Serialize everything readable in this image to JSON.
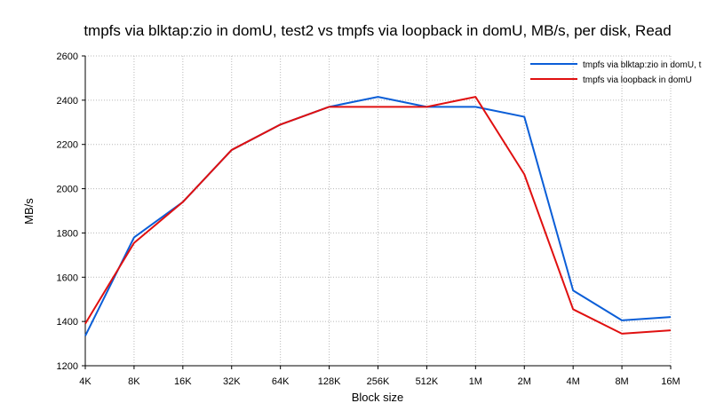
{
  "chart_data": {
    "type": "line",
    "title": "tmpfs via blktap:zio in domU, test2 vs tmpfs via loopback in domU, MB/s, per disk, Read",
    "xlabel": "Block size",
    "ylabel": "MB/s",
    "categories": [
      "4K",
      "8K",
      "16K",
      "32K",
      "64K",
      "128K",
      "256K",
      "512K",
      "1M",
      "2M",
      "4M",
      "8M",
      "16M"
    ],
    "ylim": [
      1200,
      2600
    ],
    "yticks": [
      1200,
      1400,
      1600,
      1800,
      2000,
      2200,
      2400,
      2600
    ],
    "grid": true,
    "legend_position": "top-right",
    "series": [
      {
        "name": "tmpfs via blktap:zio in domU, t",
        "color": "#0b5ed7",
        "values": [
          1335,
          1780,
          1940,
          2175,
          2290,
          2370,
          2415,
          2370,
          2370,
          2325,
          1540,
          1405,
          1420
        ]
      },
      {
        "name": "tmpfs via loopback in domU",
        "color": "#e01010",
        "values": [
          1390,
          1755,
          1940,
          2175,
          2290,
          2370,
          2370,
          2370,
          2415,
          2065,
          1455,
          1345,
          1360
        ]
      }
    ]
  }
}
